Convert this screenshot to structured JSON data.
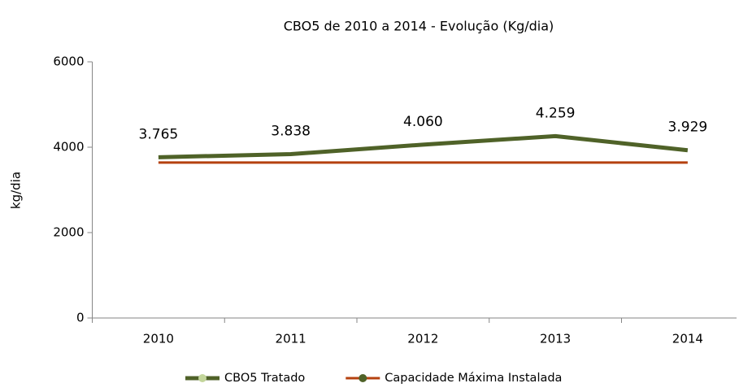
{
  "chart_data": {
    "type": "line",
    "title": "CBO5 de 2010 a 2014 - Evolução (Kg/dia)",
    "y_label": "kg/dia",
    "categories": [
      "2010",
      "2011",
      "2012",
      "2013",
      "2014"
    ],
    "series": [
      {
        "name": "CBO5 Tratado",
        "color": "#4f6228",
        "marker_color": "#c3d69b",
        "values": [
          3765,
          3838,
          4060,
          4259,
          3929
        ],
        "value_labels": [
          "3.765",
          "3.838",
          "4.060",
          "4.259",
          "3.929"
        ]
      },
      {
        "name": "Capacidade Máxima Instalada",
        "color": "#b5410f",
        "marker_color": "#4f6228",
        "values": [
          3640,
          3640,
          3640,
          3640,
          3640
        ]
      }
    ],
    "ylim": [
      0,
      6000
    ],
    "yticks": [
      0,
      2000,
      4000,
      6000
    ],
    "grid": false,
    "legend": "bottom"
  }
}
